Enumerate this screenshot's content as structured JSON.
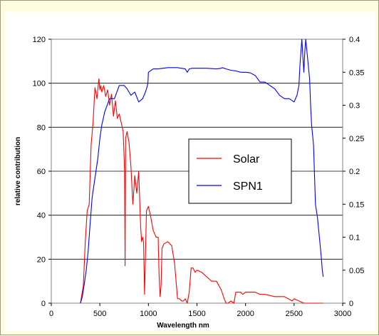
{
  "chart_data": {
    "type": "line",
    "title": "",
    "xlabel": "Wavelength nm",
    "ylabel": "relative contribution",
    "y2label": "",
    "xlim": [
      0,
      3000
    ],
    "ylim": [
      0,
      120
    ],
    "y2lim": [
      0,
      0.4
    ],
    "xticks": [
      "0",
      "500",
      "1000",
      "1500",
      "2000",
      "2500",
      "3000"
    ],
    "yticks": [
      "0",
      "20",
      "40",
      "60",
      "80",
      "100",
      "120"
    ],
    "y2ticks": [
      "0",
      "0.05",
      "0.1",
      "0.15",
      "0.2",
      "0.25",
      "0.3",
      "0.35",
      "0.4"
    ],
    "grid": "horizontal",
    "legend_position": "middle-right",
    "series": [
      {
        "name": "Solar",
        "axis": "left",
        "color": "#ff0000",
        "x": [
          300,
          330,
          350,
          370,
          390,
          410,
          430,
          450,
          470,
          490,
          500,
          510,
          520,
          540,
          560,
          580,
          600,
          620,
          640,
          660,
          680,
          700,
          720,
          740,
          755,
          760,
          765,
          780,
          800,
          820,
          840,
          860,
          880,
          900,
          920,
          930,
          940,
          950,
          960,
          980,
          1000,
          1020,
          1050,
          1080,
          1100,
          1110,
          1120,
          1130,
          1140,
          1160,
          1200,
          1240,
          1270,
          1300,
          1320,
          1340,
          1360,
          1380,
          1400,
          1420,
          1440,
          1460,
          1480,
          1500,
          1550,
          1600,
          1650,
          1700,
          1750,
          1780,
          1800,
          1820,
          1850,
          1880,
          1900,
          1950,
          1970,
          2000,
          2050,
          2100,
          2150,
          2200,
          2300,
          2400,
          2480,
          2500,
          2550,
          2600,
          2700,
          2800
        ],
        "y": [
          0,
          8,
          28,
          42,
          45,
          72,
          82,
          98,
          93,
          102,
          97,
          99,
          96,
          99,
          94,
          97,
          90,
          95,
          85,
          92,
          84,
          86,
          82,
          78,
          60,
          17,
          75,
          78,
          73,
          62,
          45,
          58,
          50,
          60,
          35,
          28,
          30,
          28,
          4,
          42,
          44,
          40,
          33,
          30,
          30,
          13,
          3,
          8,
          25,
          27,
          28,
          26,
          18,
          2,
          2,
          1,
          1,
          2,
          0,
          5,
          16,
          16,
          14,
          15,
          14,
          12,
          10,
          10,
          6,
          2,
          0,
          0,
          1,
          0,
          5,
          5,
          4,
          5,
          5,
          5,
          4,
          4,
          3,
          3,
          1,
          2,
          1,
          0,
          0,
          0
        ]
      },
      {
        "name": "SPN1",
        "axis": "right",
        "color": "#0000ff",
        "x": [
          300,
          320,
          340,
          360,
          380,
          400,
          420,
          440,
          460,
          480,
          500,
          520,
          550,
          600,
          650,
          700,
          730,
          750,
          780,
          820,
          860,
          900,
          940,
          970,
          990,
          995,
          1000,
          1050,
          1100,
          1150,
          1200,
          1300,
          1380,
          1400,
          1420,
          1450,
          1500,
          1600,
          1700,
          1750,
          1760,
          1800,
          1850,
          1900,
          1950,
          2000,
          2050,
          2100,
          2150,
          2200,
          2250,
          2300,
          2350,
          2400,
          2450,
          2500,
          2530,
          2550,
          2560,
          2580,
          2600,
          2610,
          2620,
          2640,
          2660,
          2670,
          2680,
          2700,
          2720,
          2740,
          2760,
          2780,
          2790,
          2800
        ],
        "y": [
          0,
          0.01,
          0.03,
          0.05,
          0.08,
          0.12,
          0.16,
          0.18,
          0.2,
          0.22,
          0.25,
          0.27,
          0.29,
          0.31,
          0.31,
          0.33,
          0.33,
          0.33,
          0.325,
          0.315,
          0.32,
          0.305,
          0.31,
          0.32,
          0.33,
          0.335,
          0.35,
          0.355,
          0.355,
          0.356,
          0.357,
          0.357,
          0.355,
          0.35,
          0.355,
          0.356,
          0.356,
          0.356,
          0.355,
          0.356,
          0.357,
          0.355,
          0.353,
          0.352,
          0.35,
          0.35,
          0.349,
          0.345,
          0.335,
          0.335,
          0.33,
          0.325,
          0.315,
          0.31,
          0.31,
          0.305,
          0.315,
          0.33,
          0.36,
          0.4,
          0.35,
          0.38,
          0.4,
          0.37,
          0.34,
          0.3,
          0.27,
          0.24,
          0.15,
          0.13,
          0.1,
          0.07,
          0.05,
          0.04
        ]
      }
    ]
  }
}
